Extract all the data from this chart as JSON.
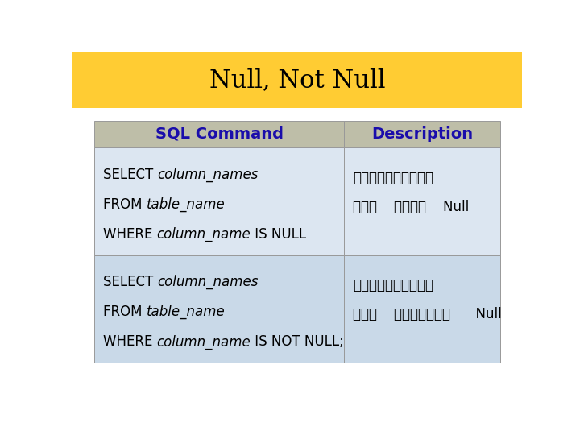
{
  "title": "Null, Not Null",
  "title_bg": "#FFCC33",
  "title_color": "#000000",
  "title_fontsize": 22,
  "title_font": "serif",
  "header_bg": "#BEBEA8",
  "header_col1": "SQL Command",
  "header_col2": "Description",
  "header_text_color": "#1A0DAB",
  "header_fontsize": 14,
  "row1_bg": "#DCE6F1",
  "row2_bg": "#C9D9E8",
  "outer_bg": "#FFFFFF",
  "col_split": 0.615,
  "cell_text_color": "#000000",
  "cell_fontsize": 12,
  "thai_desc_row1_line1": "เลอกขอมลทค",
  "thai_desc_row1_line2": "ที่    เป็น    Null",
  "thai_desc_row2_line1": "เลอกขอมลทค",
  "thai_desc_row2_line2": "ที่    ไม่เป็น      Null",
  "row1_lines": [
    [
      "SELECT ",
      "column_names",
      ""
    ],
    [
      "FROM ",
      "table_name",
      ""
    ],
    [
      "WHERE ",
      "column_name",
      " IS NULL"
    ]
  ],
  "row2_lines": [
    [
      "SELECT ",
      "column_names",
      ""
    ],
    [
      "FROM ",
      "table_name",
      ""
    ],
    [
      "WHERE ",
      "column_name",
      " IS NOT NULL;"
    ]
  ]
}
